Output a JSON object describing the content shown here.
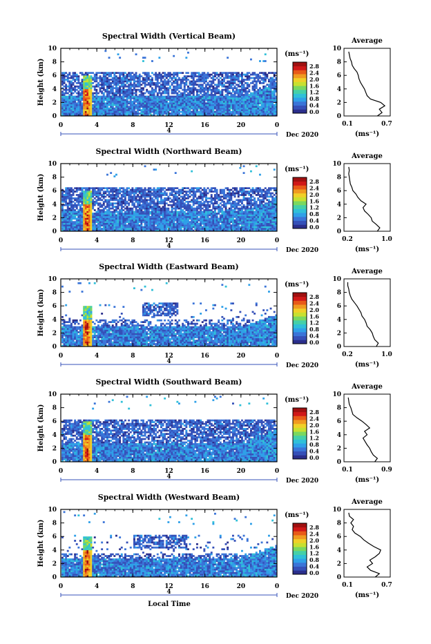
{
  "colors": {
    "scale": [
      "#2b2f8c",
      "#3550b8",
      "#3a74d8",
      "#2fa0e8",
      "#30c0d8",
      "#45d0a8",
      "#7ad860",
      "#c8e030",
      "#f0d028",
      "#f09a20",
      "#e85a18",
      "#d01818",
      "#a01010"
    ],
    "black": "#000000"
  },
  "shared": {
    "xlabel": "Local Time",
    "ylabel": "Height (km)",
    "date_label": "Dec 2020",
    "day_label": "4",
    "cb_unit": "(ms⁻¹)",
    "avg_title": "Average",
    "avg_xlabel": "(ms⁻¹)",
    "cb_ticks": [
      "2.8",
      "2.4",
      "2.0",
      "1.6",
      "1.2",
      "0.8",
      "0.4",
      "0.0"
    ],
    "x_ticks": [
      "0",
      "4",
      "8",
      "12",
      "16",
      "20",
      "0"
    ],
    "y_ticks": [
      "0",
      "2",
      "4",
      "6",
      "8",
      "10"
    ]
  },
  "chart_data": [
    {
      "type": "heatmap",
      "title": "Spectral Width (Vertical Beam)",
      "x_range_hours": [
        0,
        24
      ],
      "ylim": [
        0,
        10
      ],
      "zlim": [
        0.0,
        3.0
      ],
      "avg_profile": {
        "xlim": [
          0.1,
          0.7
        ],
        "xtick_labels": [
          "0.1",
          "0.7"
        ],
        "height": [
          0,
          0.5,
          1,
          1.5,
          2,
          2.5,
          3,
          3.5,
          4,
          4.5,
          5,
          5.5,
          6,
          6.5,
          7,
          7.5,
          8,
          8.5,
          9,
          9.5
        ],
        "value": [
          0.55,
          0.62,
          0.58,
          0.66,
          0.6,
          0.45,
          0.4,
          0.38,
          0.36,
          0.33,
          0.3,
          0.28,
          0.27,
          0.25,
          0.21,
          0.18,
          0.17,
          0.15,
          0.14,
          0.13
        ]
      }
    },
    {
      "type": "heatmap",
      "title": "Spectral Width (Northward Beam)",
      "x_range_hours": [
        0,
        24
      ],
      "ylim": [
        0,
        10
      ],
      "zlim": [
        0.0,
        3.0
      ],
      "avg_profile": {
        "xlim": [
          0.2,
          1.0
        ],
        "xtick_labels": [
          "0.2",
          "1.0"
        ],
        "height": [
          0,
          0.5,
          1,
          1.5,
          2,
          2.5,
          3,
          3.5,
          4,
          4.5,
          5,
          5.5,
          6,
          6.5,
          7,
          7.5,
          8,
          8.5,
          9,
          9.5
        ],
        "value": [
          0.8,
          0.85,
          0.78,
          0.7,
          0.68,
          0.62,
          0.55,
          0.52,
          0.58,
          0.48,
          0.42,
          0.38,
          0.32,
          0.3,
          0.27,
          0.26,
          0.25,
          0.24,
          0.25,
          0.24
        ]
      }
    },
    {
      "type": "heatmap",
      "title": "Spectral Width (Eastward Beam)",
      "x_range_hours": [
        0,
        24
      ],
      "ylim": [
        0,
        10
      ],
      "zlim": [
        0.0,
        3.0
      ],
      "avg_profile": {
        "xlim": [
          0.2,
          1.0
        ],
        "xtick_labels": [
          "0.2",
          "1.0"
        ],
        "height": [
          0,
          0.5,
          1,
          1.5,
          2,
          2.5,
          3,
          3.5,
          4,
          4.5,
          5,
          5.5,
          6,
          6.5,
          7,
          7.5,
          8,
          8.5,
          9,
          9.5
        ],
        "value": [
          0.78,
          0.82,
          0.75,
          0.72,
          0.7,
          0.66,
          0.6,
          0.58,
          0.55,
          0.5,
          0.48,
          0.44,
          0.4,
          0.35,
          0.3,
          0.27,
          0.25,
          0.24,
          0.22,
          0.22
        ]
      }
    },
    {
      "type": "heatmap",
      "title": "Spectral Width (Southward Beam)",
      "x_range_hours": [
        0,
        24
      ],
      "ylim": [
        0,
        10
      ],
      "zlim": [
        0.0,
        3.0
      ],
      "avg_profile": {
        "xlim": [
          0.1,
          0.9
        ],
        "xtick_labels": [
          "0.1",
          "0.9"
        ],
        "height": [
          0,
          0.5,
          1,
          1.5,
          2,
          2.5,
          3,
          3.5,
          4,
          4.5,
          5,
          5.5,
          6,
          6.5,
          7,
          7.5,
          8,
          8.5,
          9,
          9.5
        ],
        "value": [
          0.65,
          0.7,
          0.62,
          0.58,
          0.55,
          0.5,
          0.46,
          0.42,
          0.5,
          0.45,
          0.55,
          0.48,
          0.4,
          0.3,
          0.22,
          0.2,
          0.18,
          0.15,
          0.14,
          0.13
        ]
      }
    },
    {
      "type": "heatmap",
      "title": "Spectral Width (Westward Beam)",
      "x_range_hours": [
        0,
        24
      ],
      "ylim": [
        0,
        10
      ],
      "zlim": [
        0.0,
        3.0
      ],
      "avg_profile": {
        "xlim": [
          0.1,
          0.7
        ],
        "xtick_labels": [
          "0.1",
          "0.7"
        ],
        "height": [
          0,
          0.5,
          1,
          1.5,
          2,
          2.5,
          3,
          3.5,
          4,
          4.5,
          5,
          5.5,
          6,
          6.5,
          7,
          7.5,
          8,
          8.5,
          9,
          9.5
        ],
        "value": [
          0.52,
          0.58,
          0.45,
          0.4,
          0.48,
          0.44,
          0.52,
          0.58,
          0.6,
          0.5,
          0.42,
          0.35,
          0.3,
          0.22,
          0.18,
          0.2,
          0.16,
          0.2,
          0.14,
          0.13
        ]
      }
    }
  ]
}
